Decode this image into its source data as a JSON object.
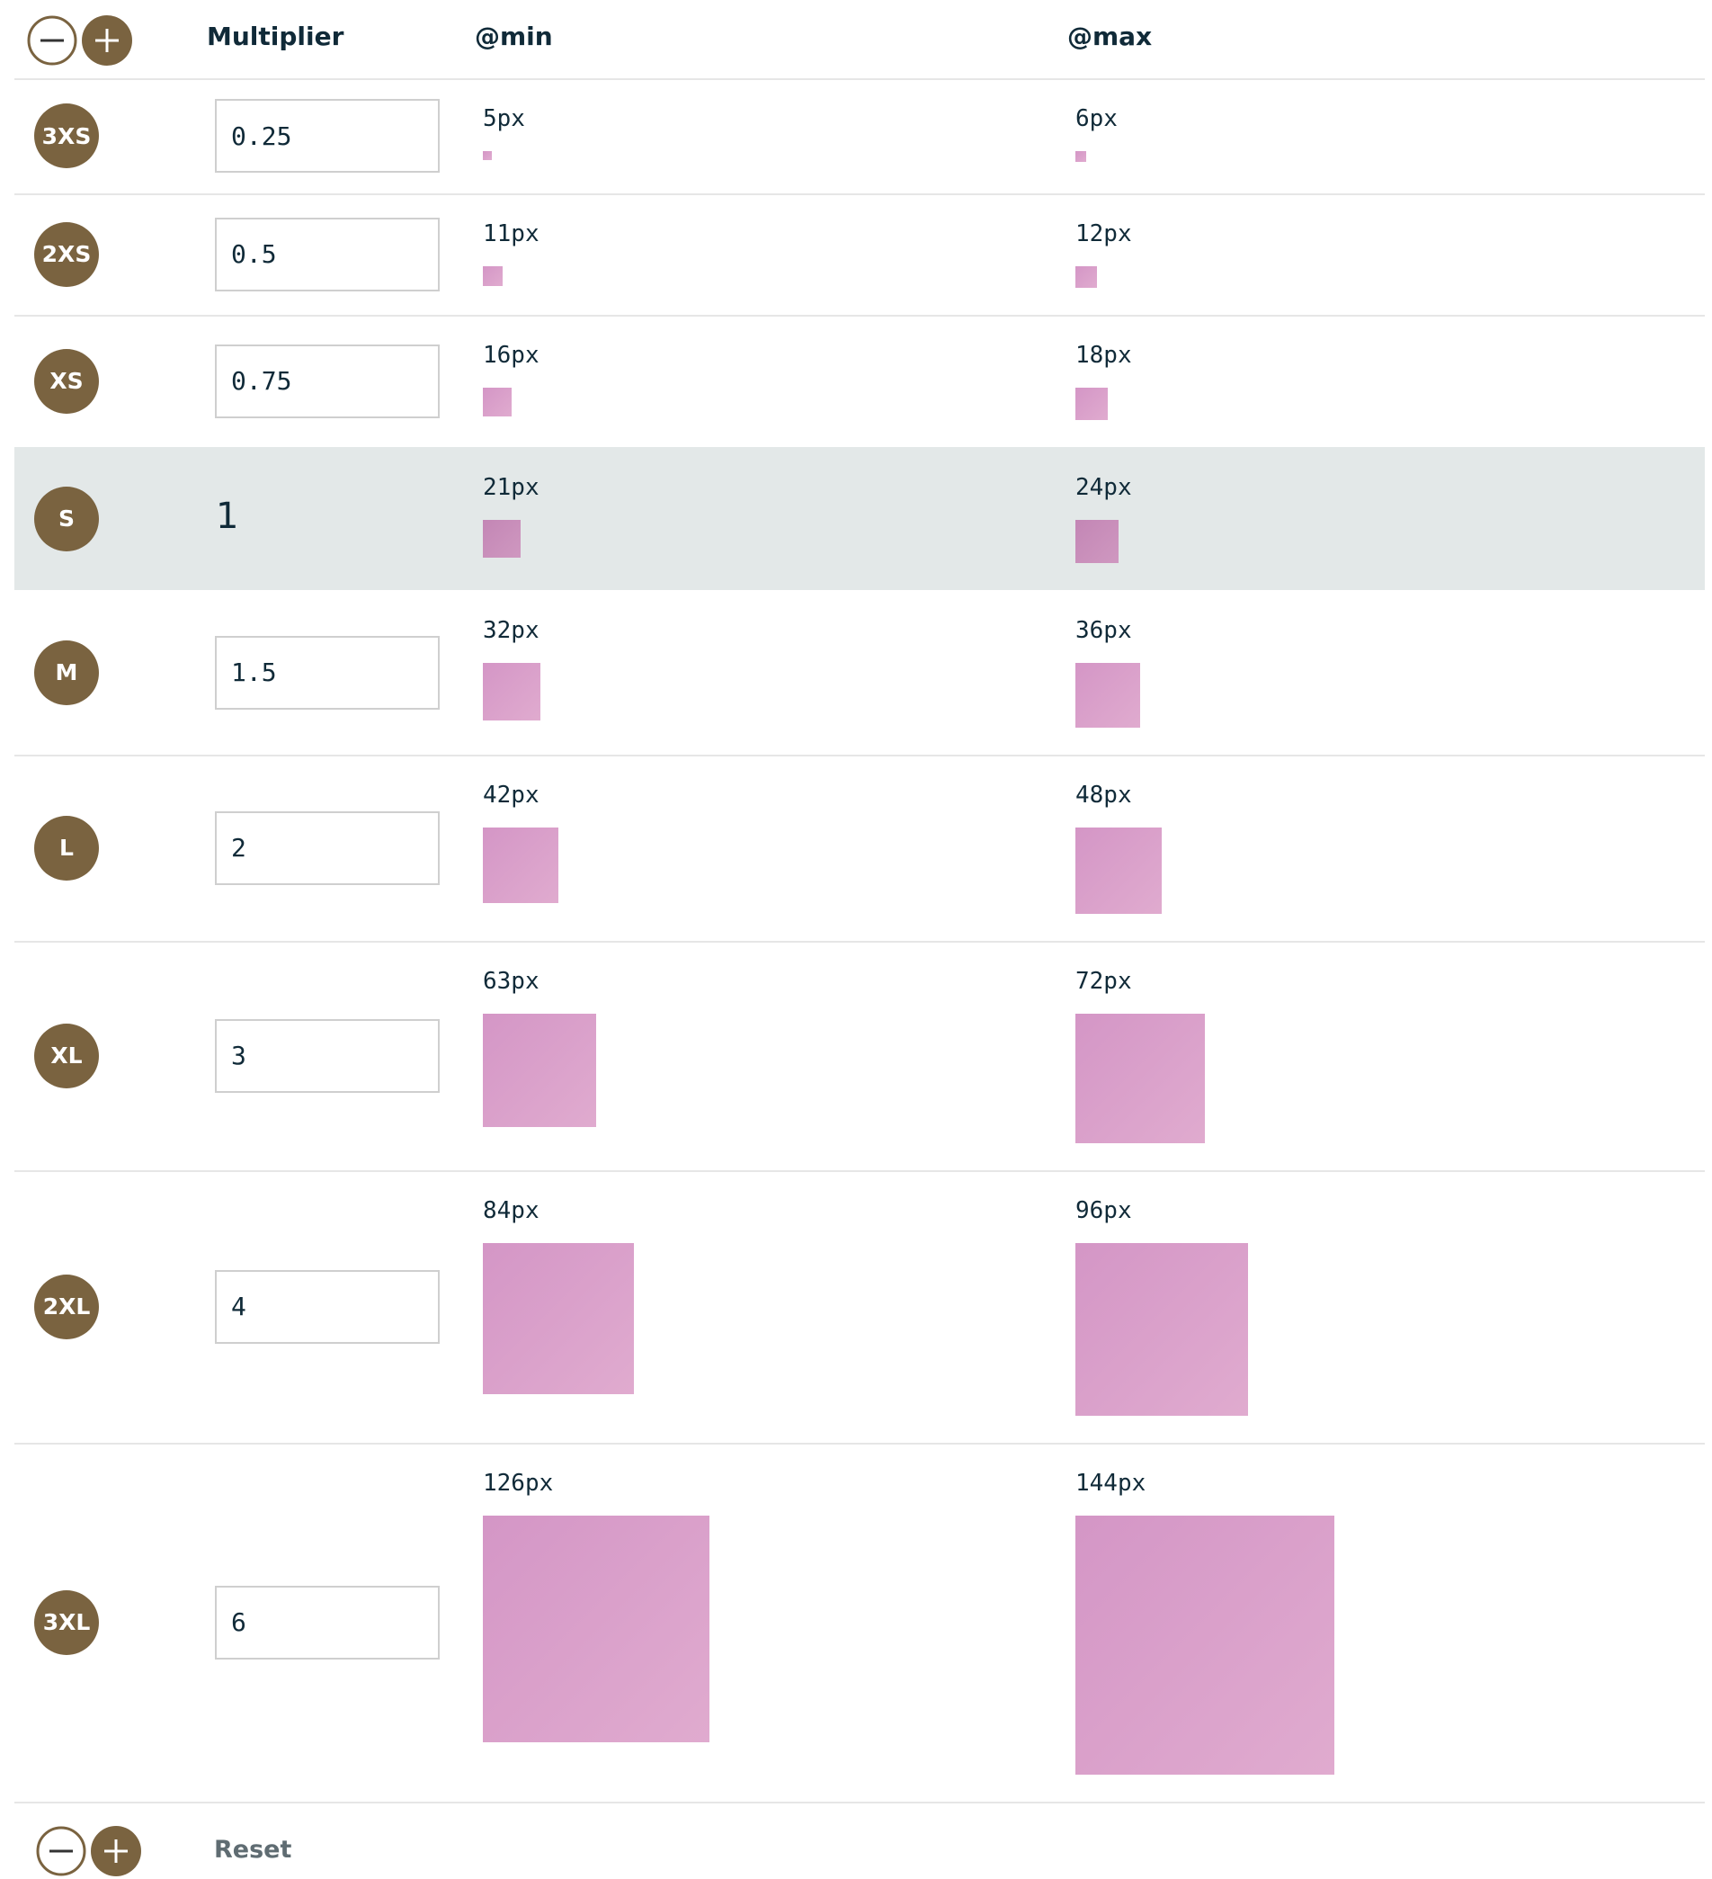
{
  "header": {
    "multiplier": "Multiplier",
    "min": "@min",
    "max": "@max"
  },
  "rows": [
    {
      "label": "3XS",
      "multiplier": "0.25",
      "min": {
        "value": 5,
        "label": "5px"
      },
      "max": {
        "value": 6,
        "label": "6px"
      }
    },
    {
      "label": "2XS",
      "multiplier": "0.5",
      "min": {
        "value": 11,
        "label": "11px"
      },
      "max": {
        "value": 12,
        "label": "12px"
      }
    },
    {
      "label": "XS",
      "multiplier": "0.75",
      "min": {
        "value": 16,
        "label": "16px"
      },
      "max": {
        "value": 18,
        "label": "18px"
      }
    },
    {
      "label": "S",
      "multiplier": "1",
      "min": {
        "value": 21,
        "label": "21px"
      },
      "max": {
        "value": 24,
        "label": "24px"
      }
    },
    {
      "label": "M",
      "multiplier": "1.5",
      "min": {
        "value": 32,
        "label": "32px"
      },
      "max": {
        "value": 36,
        "label": "36px"
      }
    },
    {
      "label": "L",
      "multiplier": "2",
      "min": {
        "value": 42,
        "label": "42px"
      },
      "max": {
        "value": 48,
        "label": "48px"
      }
    },
    {
      "label": "XL",
      "multiplier": "3",
      "min": {
        "value": 63,
        "label": "63px"
      },
      "max": {
        "value": 72,
        "label": "72px"
      }
    },
    {
      "label": "2XL",
      "multiplier": "4",
      "min": {
        "value": 84,
        "label": "84px"
      },
      "max": {
        "value": 96,
        "label": "96px"
      }
    },
    {
      "label": "3XL",
      "multiplier": "6",
      "min": {
        "value": 126,
        "label": "126px"
      },
      "max": {
        "value": 144,
        "label": "144px"
      }
    }
  ],
  "footer": {
    "reset": "Reset"
  }
}
